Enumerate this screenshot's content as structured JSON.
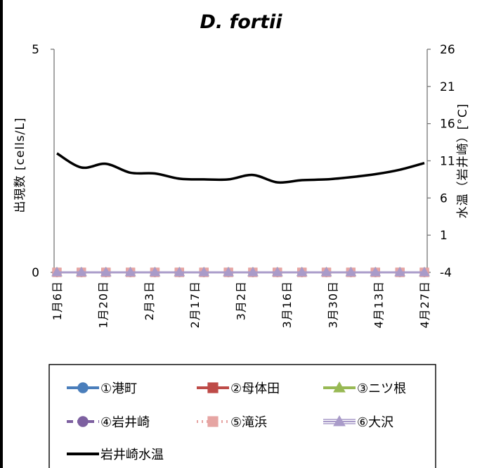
{
  "chart_data": {
    "type": "line",
    "title": "D. fortii",
    "ylabel": "出現数 [cells/L]",
    "y2label": "水温（岩井崎）[°C]",
    "ylim": [
      0,
      5
    ],
    "yticks": [
      "0",
      "5"
    ],
    "y2lim": [
      -4,
      26
    ],
    "y2ticks": [
      "-4",
      "1",
      "6",
      "11",
      "16",
      "21",
      "26"
    ],
    "x_ticklabels": [
      "1月6日",
      "1月20日",
      "2月3日",
      "2月17日",
      "3月2日",
      "3月16日",
      "3月30日",
      "4月13日",
      "4月27日"
    ],
    "x": [
      "1月6日",
      "1月20日",
      "1月27日",
      "2月3日",
      "2月10日",
      "2月17日",
      "2月24日",
      "3月2日",
      "3月9日",
      "3月16日",
      "3月23日",
      "3月30日",
      "4月6日",
      "4月13日",
      "4月20日",
      "4月27日"
    ],
    "series": [
      {
        "name": "①港町",
        "axis": "left",
        "color": "#4a7ebb",
        "marker": "circle",
        "dash": "solid",
        "values": [
          0,
          0,
          0,
          0,
          0,
          0,
          0,
          0,
          0,
          0,
          0,
          0,
          0,
          0,
          0,
          0
        ]
      },
      {
        "name": "②母体田",
        "axis": "left",
        "color": "#be4b48",
        "marker": "square",
        "dash": "solid",
        "values": [
          0,
          0,
          0,
          0,
          0,
          0,
          0,
          0,
          0,
          0,
          0,
          0,
          0,
          0,
          0,
          0
        ]
      },
      {
        "name": "③ニツ根",
        "axis": "left",
        "color": "#98b954",
        "marker": "triangle",
        "dash": "solid",
        "values": [
          0,
          0,
          0,
          0,
          0,
          0,
          0,
          0,
          0,
          0,
          0,
          0,
          0,
          0,
          0,
          0
        ]
      },
      {
        "name": "④岩井崎",
        "axis": "left",
        "color": "#7d60a0",
        "marker": "circle",
        "dash": "dashed",
        "values": [
          0,
          0,
          0,
          0,
          0,
          0,
          0,
          0,
          0,
          0,
          0,
          0,
          0,
          0,
          0,
          0
        ]
      },
      {
        "name": "⑤滝浜",
        "axis": "left",
        "color": "#e6a5a3",
        "marker": "square",
        "dash": "dotted",
        "values": [
          0,
          0,
          0,
          0,
          0,
          0,
          0,
          0,
          0,
          0,
          0,
          0,
          0,
          0,
          0,
          0
        ]
      },
      {
        "name": "⑥大沢",
        "axis": "left",
        "color": "#a99bc9",
        "marker": "triangle",
        "dash": "hollow",
        "values": [
          0,
          0,
          0,
          0,
          0,
          0,
          0,
          0,
          0,
          0,
          0,
          0,
          0,
          0,
          0,
          0
        ]
      },
      {
        "name": "岩井崎水温",
        "axis": "right",
        "color": "#000000",
        "marker": "none",
        "dash": "solid",
        "values": [
          12.0,
          10.1,
          10.6,
          9.4,
          9.3,
          8.6,
          8.5,
          8.5,
          9.1,
          8.1,
          8.4,
          8.5,
          8.8,
          9.2,
          9.8,
          10.7
        ]
      }
    ],
    "legend_position": "bottom",
    "grid": false
  }
}
